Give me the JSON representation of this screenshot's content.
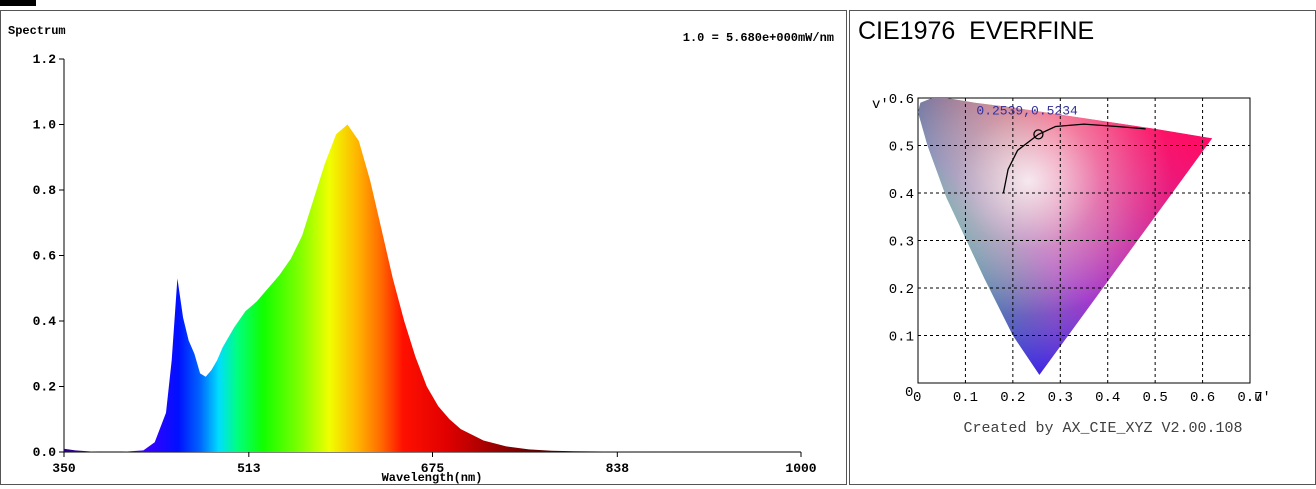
{
  "spectrum": {
    "title": "Spectrum",
    "scale_note": "1.0 = 5.680e+000mW/nm",
    "chart_data": {
      "type": "area",
      "title": "Spectrum",
      "xlabel": "Wavelength(nm)",
      "ylabel": "",
      "xlim": [
        350,
        1000
      ],
      "ylim": [
        0,
        1.2
      ],
      "x_ticks": [
        "350",
        "513",
        "675",
        "838",
        "1000"
      ],
      "y_ticks": [
        "0.0",
        "0.2",
        "0.4",
        "0.6",
        "0.8",
        "1.0",
        "1.2"
      ],
      "grid": false,
      "fill": "wavelength-colored",
      "x": [
        350,
        360,
        380,
        400,
        420,
        430,
        440,
        445,
        450,
        455,
        460,
        465,
        470,
        475,
        480,
        485,
        490,
        500,
        510,
        520,
        530,
        540,
        550,
        560,
        570,
        580,
        590,
        600,
        610,
        620,
        630,
        640,
        650,
        660,
        670,
        680,
        690,
        700,
        720,
        740,
        760,
        780,
        800,
        850,
        900,
        950,
        1000
      ],
      "y": [
        0.01,
        0.005,
        0.0,
        0.0,
        0.005,
        0.03,
        0.12,
        0.28,
        0.53,
        0.41,
        0.34,
        0.3,
        0.24,
        0.23,
        0.25,
        0.28,
        0.32,
        0.38,
        0.43,
        0.46,
        0.5,
        0.54,
        0.59,
        0.66,
        0.77,
        0.88,
        0.97,
        1.0,
        0.95,
        0.83,
        0.68,
        0.53,
        0.4,
        0.29,
        0.2,
        0.14,
        0.1,
        0.07,
        0.035,
        0.017,
        0.008,
        0.004,
        0.002,
        0.001,
        0.0,
        0.0,
        0.0
      ]
    }
  },
  "cie": {
    "title": "CIE1976  EVERFINE",
    "coordinate_label": "0.2539,0.5234",
    "footer": "Created by AX_CIE_XYZ V2.00.108",
    "chart_data": {
      "type": "scatter",
      "title": "CIE1976  EVERFINE",
      "xlabel": "u'",
      "ylabel": "v'",
      "xlim": [
        0,
        0.7
      ],
      "ylim": [
        0,
        0.6
      ],
      "x_ticks": [
        "0",
        "0.1",
        "0.2",
        "0.3",
        "0.4",
        "0.5",
        "0.6",
        "0.7"
      ],
      "y_ticks": [
        "0",
        "0.1",
        "0.2",
        "0.3",
        "0.4",
        "0.5",
        "0.6"
      ],
      "origin_label": "0",
      "grid": true,
      "series": [
        {
          "points": [
            {
              "u": 0.2539,
              "v": 0.5234
            }
          ]
        }
      ],
      "planckian_locus": [
        [
          0.18,
          0.4
        ],
        [
          0.19,
          0.45
        ],
        [
          0.21,
          0.49
        ],
        [
          0.2539,
          0.5234
        ],
        [
          0.29,
          0.54
        ],
        [
          0.35,
          0.545
        ],
        [
          0.42,
          0.54
        ],
        [
          0.48,
          0.535
        ]
      ],
      "gamut_boundary": [
        [
          0.256,
          0.017
        ],
        [
          0.2,
          0.1
        ],
        [
          0.14,
          0.22
        ],
        [
          0.06,
          0.39
        ],
        [
          0.02,
          0.5
        ],
        [
          0.0,
          0.57
        ],
        [
          0.005,
          0.59
        ],
        [
          0.03,
          0.6
        ],
        [
          0.06,
          0.6
        ],
        [
          0.12,
          0.59
        ],
        [
          0.2,
          0.58
        ],
        [
          0.3,
          0.565
        ],
        [
          0.4,
          0.55
        ],
        [
          0.5,
          0.535
        ],
        [
          0.62,
          0.515
        ]
      ]
    }
  }
}
